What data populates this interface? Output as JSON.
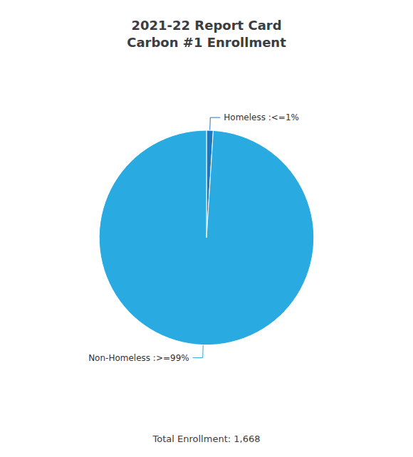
{
  "chart_data": {
    "type": "pie",
    "title": "2021-22 Report Card\nCarbon #1 Enrollment",
    "categories": [
      "Homeless :<=1%",
      "Non-Homeless :>=99%"
    ],
    "values": [
      1,
      99
    ],
    "colors": [
      "#1A78C2",
      "#29ABE2"
    ],
    "annotations": [
      "Total Enrollment: 1,668"
    ]
  }
}
